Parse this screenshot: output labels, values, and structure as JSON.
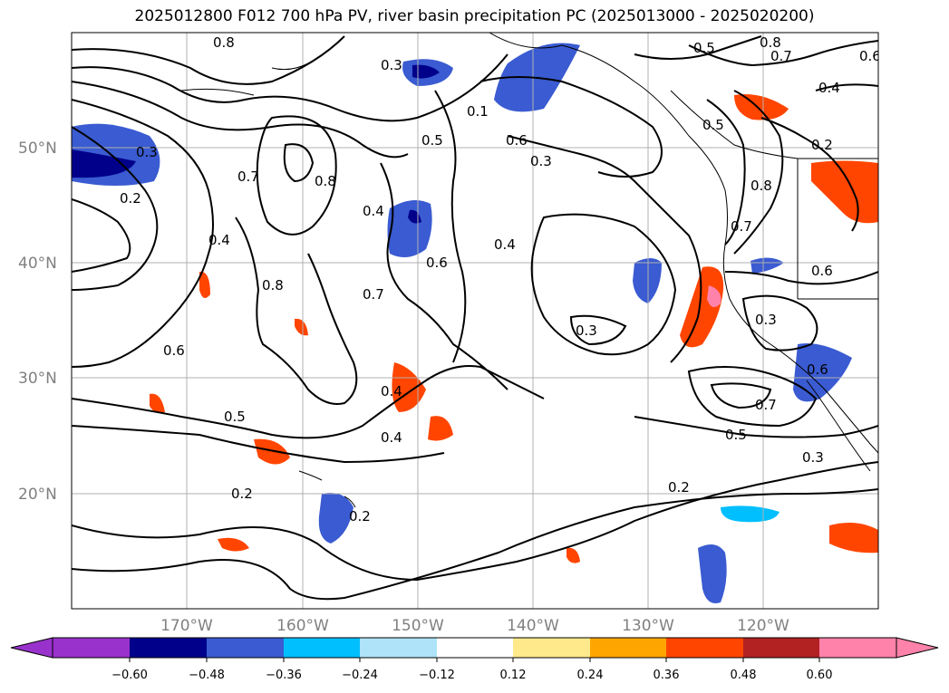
{
  "title": "2025012800 F012 700 hPa PV, river basin precipitation PC (2025013000 - 2025020200)",
  "lat_labels": [
    "50°N",
    "40°N",
    "30°N",
    "20°N"
  ],
  "lon_labels": [
    "170°W",
    "160°W",
    "150°W",
    "140°W",
    "130°W",
    "120°W"
  ],
  "colorbar": {
    "tick_labels": [
      "−0.60",
      "−0.48",
      "−0.36",
      "−0.24",
      "−0.12",
      "0.12",
      "0.24",
      "0.36",
      "0.48",
      "0.60"
    ],
    "colors": [
      "#9932cc",
      "#00008b",
      "#3a5bd1",
      "#00bfff",
      "#aee3f9",
      "#ffffff",
      "#ffe98a",
      "#ffa500",
      "#ff4500",
      "#b22222",
      "#ff82ab"
    ]
  },
  "contour_labels": [
    "0.8",
    "0.3",
    "0.8",
    "0.7",
    "0.5",
    "0.6",
    "0.3",
    "0.2",
    "0.7",
    "0.8",
    "0.4",
    "0.4",
    "0.8",
    "0.7",
    "0.6",
    "0.5",
    "0.1",
    "0.6",
    "0.3",
    "0.5",
    "0.4",
    "0.2",
    "0.8",
    "0.7",
    "0.6",
    "0.4",
    "0.3",
    "0.6",
    "0.3",
    "0.7",
    "0.5",
    "0.3",
    "0.6",
    "0.4",
    "0.4",
    "0.5",
    "0.2",
    "0.2",
    "0.2"
  ]
}
